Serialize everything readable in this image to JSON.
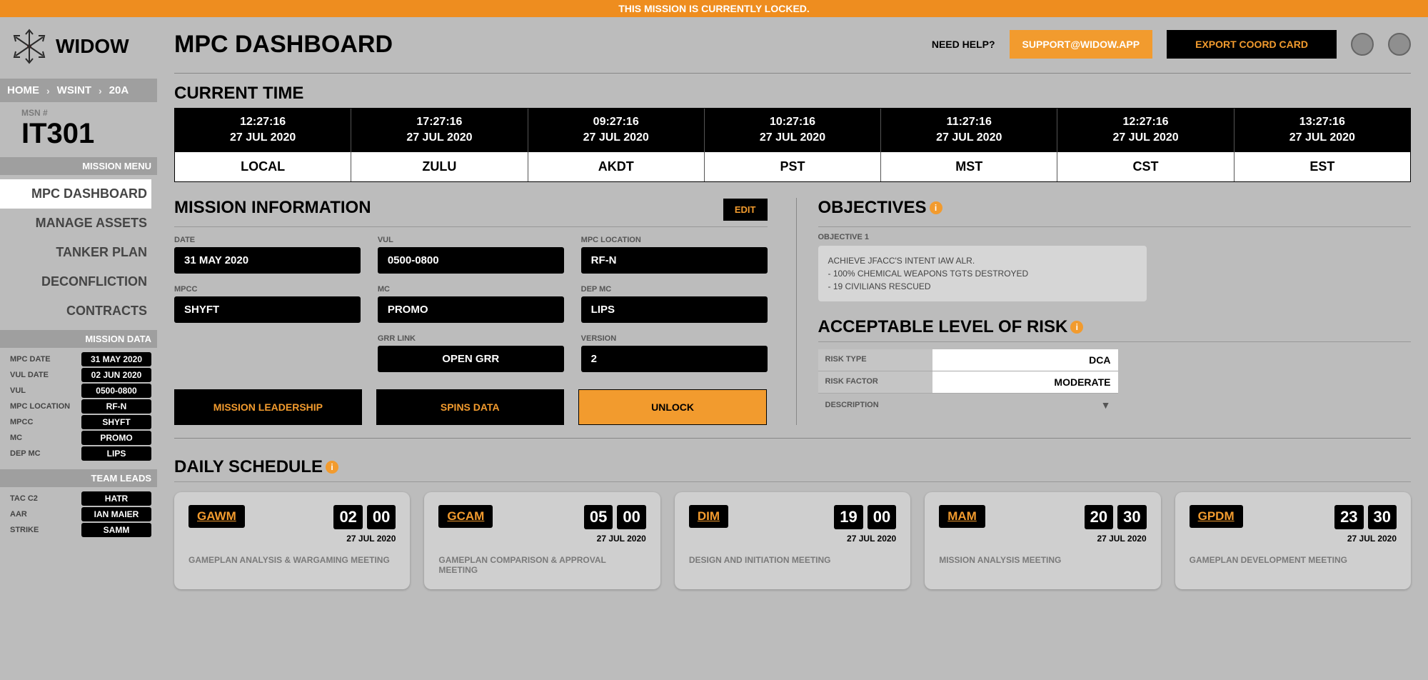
{
  "banner": "THIS MISSION IS CURRENTLY LOCKED.",
  "logo": "WIDOW",
  "breadcrumb": {
    "home": "HOME",
    "l1": "WSINT",
    "l2": "20A"
  },
  "msn_label": "MSN #",
  "msn_id": "IT301",
  "side": {
    "menu_header": "MISSION MENU",
    "menu": [
      {
        "label": "MPC DASHBOARD",
        "active": true
      },
      {
        "label": "MANAGE ASSETS",
        "active": false
      },
      {
        "label": "TANKER PLAN",
        "active": false
      },
      {
        "label": "DECONFLICTION",
        "active": false
      },
      {
        "label": "CONTRACTS",
        "active": false
      }
    ],
    "data_header": "MISSION DATA",
    "data": [
      {
        "k": "MPC DATE",
        "v": "31 MAY 2020"
      },
      {
        "k": "VUL DATE",
        "v": "02 JUN 2020"
      },
      {
        "k": "VUL",
        "v": "0500-0800"
      },
      {
        "k": "MPC LOCATION",
        "v": "RF-N"
      },
      {
        "k": "MPCC",
        "v": "SHYFT"
      },
      {
        "k": "MC",
        "v": "PROMO"
      },
      {
        "k": "DEP MC",
        "v": "LIPS"
      }
    ],
    "leads_header": "TEAM LEADS",
    "leads": [
      {
        "k": "TAC C2",
        "v": "HATR"
      },
      {
        "k": "AAR",
        "v": "IAN MAIER"
      },
      {
        "k": "STRIKE",
        "v": "SAMM"
      }
    ]
  },
  "header": {
    "title": "MPC DASHBOARD",
    "need_help": "NEED HELP?",
    "support": "SUPPORT@WIDOW.APP",
    "export": "EXPORT COORD CARD"
  },
  "current_time_title": "CURRENT TIME",
  "timezones": [
    {
      "time": "12:27:16",
      "date": "27 JUL 2020",
      "zone": "LOCAL"
    },
    {
      "time": "17:27:16",
      "date": "27 JUL 2020",
      "zone": "ZULU"
    },
    {
      "time": "09:27:16",
      "date": "27 JUL 2020",
      "zone": "AKDT"
    },
    {
      "time": "10:27:16",
      "date": "27 JUL 2020",
      "zone": "PST"
    },
    {
      "time": "11:27:16",
      "date": "27 JUL 2020",
      "zone": "MST"
    },
    {
      "time": "12:27:16",
      "date": "27 JUL 2020",
      "zone": "CST"
    },
    {
      "time": "13:27:16",
      "date": "27 JUL 2020",
      "zone": "EST"
    }
  ],
  "mission_info": {
    "title": "MISSION INFORMATION",
    "edit": "EDIT",
    "fields": {
      "date_l": "DATE",
      "date_v": "31 MAY 2020",
      "vul_l": "VUL",
      "vul_v": "0500-0800",
      "loc_l": "MPC LOCATION",
      "loc_v": "RF-N",
      "mpcc_l": "MPCC",
      "mpcc_v": "SHYFT",
      "mc_l": "MC",
      "mc_v": "PROMO",
      "dep_l": "DEP MC",
      "dep_v": "LIPS",
      "grr_l": "GRR LINK",
      "grr_v": "OPEN GRR",
      "ver_l": "VERSION",
      "ver_v": "2"
    },
    "actions": {
      "leadership": "MISSION LEADERSHIP",
      "spins": "SPINS DATA",
      "unlock": "UNLOCK"
    }
  },
  "objectives": {
    "title": "OBJECTIVES",
    "obj1_label": "OBJECTIVE 1",
    "obj1_text": "ACHIEVE JFACC'S INTENT IAW ALR.\n- 100% CHEMICAL WEAPONS TGTS DESTROYED\n- 19 CIVILIANS RESCUED"
  },
  "alr": {
    "title": "ACCEPTABLE LEVEL OF RISK",
    "rows": [
      {
        "k": "RISK TYPE",
        "v": "DCA"
      },
      {
        "k": "RISK FACTOR",
        "v": "MODERATE"
      }
    ],
    "description": "DESCRIPTION"
  },
  "daily": {
    "title": "DAILY SCHEDULE",
    "cards": [
      {
        "code": "GAWM",
        "h": "02",
        "m": "00",
        "date": "27 JUL 2020",
        "desc": "GAMEPLAN ANALYSIS & WARGAMING MEETING"
      },
      {
        "code": "GCAM",
        "h": "05",
        "m": "00",
        "date": "27 JUL 2020",
        "desc": "GAMEPLAN COMPARISON & APPROVAL MEETING"
      },
      {
        "code": "DIM",
        "h": "19",
        "m": "00",
        "date": "27 JUL 2020",
        "desc": "DESIGN AND INITIATION MEETING"
      },
      {
        "code": "MAM",
        "h": "20",
        "m": "30",
        "date": "27 JUL 2020",
        "desc": "MISSION ANALYSIS MEETING"
      },
      {
        "code": "GPDM",
        "h": "23",
        "m": "30",
        "date": "27 JUL 2020",
        "desc": "GAMEPLAN DEVELOPMENT MEETING"
      }
    ]
  }
}
